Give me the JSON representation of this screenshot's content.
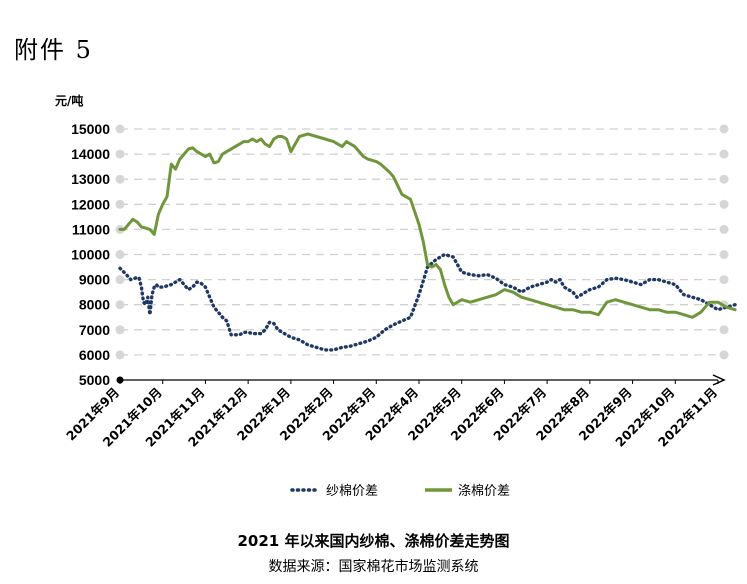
{
  "annex_label": "附件 5",
  "chart_data": {
    "type": "line",
    "title": "2021 年以来国内纱棉、涤棉价差走势图",
    "source": "数据来源：国家棉花市场监测系统",
    "ylabel": "元/吨",
    "ylim": [
      5000,
      15000
    ],
    "yticks": [
      5000,
      6000,
      7000,
      8000,
      9000,
      10000,
      11000,
      12000,
      13000,
      14000,
      15000
    ],
    "x_categories": [
      "2021年9月",
      "2021年10月",
      "2021年11月",
      "2021年12月",
      "2022年1月",
      "2022年2月",
      "2022年3月",
      "2022年4月",
      "2022年5月",
      "2022年6月",
      "2022年7月",
      "2022年8月",
      "2022年9月",
      "2022年10月",
      "2022年11月"
    ],
    "grid": true,
    "legend_position": "bottom",
    "series": [
      {
        "name": "纱棉价差",
        "style": "dotted",
        "color": "#1f3864",
        "x": [
          0.0,
          0.15,
          0.25,
          0.35,
          0.4,
          0.45,
          0.5,
          0.55,
          0.6,
          0.65,
          0.7,
          0.75,
          0.8,
          0.85,
          0.9,
          1.0,
          1.1,
          1.2,
          1.3,
          1.4,
          1.5,
          1.6,
          1.7,
          1.8,
          1.9,
          2.0,
          2.2,
          2.4,
          2.5,
          2.6,
          2.7,
          2.8,
          2.9,
          3.0,
          3.1,
          3.2,
          3.3,
          3.4,
          3.5,
          3.6,
          3.7,
          3.8,
          3.9,
          4.0,
          4.2,
          4.4,
          4.6,
          4.8,
          5.0,
          5.2,
          5.4,
          5.6,
          5.7,
          5.8,
          6.0,
          6.2,
          6.4,
          6.6,
          6.8,
          7.0,
          7.2,
          7.4,
          7.6,
          7.8,
          8.0,
          8.2,
          8.4,
          8.6,
          8.8,
          9.0,
          9.2,
          9.4,
          9.6,
          9.8,
          10.0,
          10.1,
          10.2,
          10.3,
          10.4,
          10.5,
          10.6,
          10.7,
          10.8,
          10.9,
          11.0,
          11.2,
          11.4,
          11.6,
          11.8,
          12.0,
          12.2,
          12.4,
          12.6,
          12.8,
          13.0,
          13.2,
          13.4,
          13.6,
          13.8,
          14.0,
          14.2,
          14.4
        ],
        "values": [
          9450,
          9200,
          9000,
          9050,
          9100,
          9050,
          8700,
          8100,
          8000,
          8300,
          7600,
          8400,
          8700,
          8800,
          8700,
          8700,
          8750,
          8800,
          8900,
          9000,
          8800,
          8600,
          8700,
          8900,
          8850,
          8700,
          7900,
          7500,
          7350,
          6800,
          6800,
          6800,
          6900,
          6900,
          6850,
          6850,
          6850,
          7000,
          7300,
          7250,
          7000,
          6900,
          6800,
          6700,
          6600,
          6400,
          6300,
          6200,
          6200,
          6300,
          6350,
          6450,
          6500,
          6550,
          6700,
          7000,
          7200,
          7350,
          7500,
          8400,
          9500,
          9800,
          10000,
          9900,
          9300,
          9200,
          9150,
          9200,
          9050,
          8800,
          8700,
          8500,
          8700,
          8800,
          8900,
          9000,
          8900,
          9000,
          8700,
          8600,
          8500,
          8300,
          8400,
          8500,
          8600,
          8700,
          9000,
          9050,
          9000,
          8900,
          8800,
          9000,
          9000,
          8900,
          8800,
          8400,
          8300,
          8200,
          8000,
          7800,
          7900,
          8000
        ]
      },
      {
        "name": "涤棉价差",
        "style": "solid",
        "color": "#70963c",
        "x": [
          0.0,
          0.1,
          0.2,
          0.3,
          0.4,
          0.5,
          0.6,
          0.7,
          0.8,
          0.9,
          1.0,
          1.1,
          1.2,
          1.3,
          1.4,
          1.5,
          1.6,
          1.7,
          1.8,
          1.9,
          2.0,
          2.1,
          2.2,
          2.3,
          2.4,
          2.5,
          2.6,
          2.7,
          2.8,
          2.9,
          3.0,
          3.1,
          3.2,
          3.3,
          3.4,
          3.5,
          3.6,
          3.7,
          3.8,
          3.9,
          4.0,
          4.2,
          4.4,
          4.6,
          4.8,
          5.0,
          5.2,
          5.3,
          5.5,
          5.6,
          5.7,
          5.8,
          6.0,
          6.1,
          6.3,
          6.4,
          6.6,
          6.8,
          7.0,
          7.1,
          7.2,
          7.3,
          7.4,
          7.5,
          7.6,
          7.7,
          7.8,
          8.0,
          8.2,
          8.4,
          8.6,
          8.8,
          9.0,
          9.2,
          9.3,
          9.4,
          9.6,
          9.8,
          10.0,
          10.2,
          10.4,
          10.6,
          10.8,
          11.0,
          11.2,
          11.4,
          11.6,
          11.8,
          12.0,
          12.2,
          12.4,
          12.6,
          12.8,
          13.0,
          13.2,
          13.4,
          13.6,
          13.8,
          14.0,
          14.2,
          14.4
        ],
        "values": [
          11000,
          11000,
          11200,
          11400,
          11300,
          11100,
          11050,
          11000,
          10800,
          11600,
          12000,
          12300,
          13600,
          13400,
          13800,
          14000,
          14200,
          14250,
          14100,
          14000,
          13900,
          14000,
          13650,
          13700,
          14000,
          14100,
          14200,
          14300,
          14400,
          14500,
          14500,
          14600,
          14500,
          14600,
          14400,
          14300,
          14600,
          14700,
          14700,
          14600,
          14100,
          14700,
          14800,
          14700,
          14600,
          14500,
          14300,
          14500,
          14300,
          14100,
          13900,
          13800,
          13700,
          13600,
          13300,
          13100,
          12400,
          12200,
          11200,
          10500,
          9600,
          9500,
          9600,
          9400,
          8800,
          8300,
          8000,
          8200,
          8100,
          8200,
          8300,
          8400,
          8600,
          8500,
          8400,
          8300,
          8200,
          8100,
          8000,
          7900,
          7800,
          7800,
          7700,
          7700,
          7600,
          8100,
          8200,
          8100,
          8000,
          7900,
          7800,
          7800,
          7700,
          7700,
          7600,
          7500,
          7700,
          8100,
          8100,
          7900,
          7800
        ]
      }
    ]
  }
}
